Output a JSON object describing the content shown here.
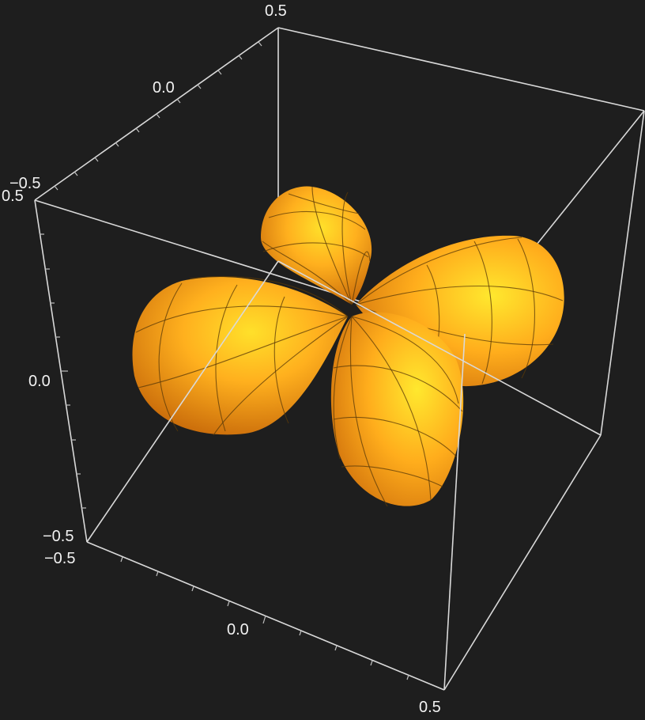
{
  "chart_data": {
    "type": "surface3d",
    "title": "",
    "description_shape": "four-lobed orbital-like surface",
    "colors": {
      "background": "#1e1e1e",
      "frame": "#d9d9d9",
      "lobe_light": "#ffd21a",
      "lobe_mid": "#ffa51a",
      "lobe_dark": "#c86a0a",
      "mesh": "#5a3a08"
    },
    "axes": {
      "x": {
        "range": [
          -0.5,
          0.5
        ],
        "tick_labels": [
          "-0.5",
          "0.0",
          "0.5"
        ]
      },
      "y": {
        "range": [
          -0.5,
          0.5
        ],
        "tick_labels": [
          "-0.5",
          "0.0",
          "0.5"
        ]
      },
      "z": {
        "range": [
          -0.5,
          0.5
        ],
        "tick_labels": [
          "-0.5",
          "0.0",
          "0.5"
        ]
      }
    },
    "labels": {
      "top_y_max": "0.5",
      "top_y_mid": "0.0",
      "top_y_min": "−0.5",
      "z_max": "0.5",
      "z_mid": "0.0",
      "z_min": "−0.5",
      "x_min": "−0.5",
      "x_mid": "0.0",
      "x_max": "0.5"
    },
    "lobes": [
      "upper-left-back",
      "left-front",
      "right-back",
      "lower-front"
    ]
  }
}
